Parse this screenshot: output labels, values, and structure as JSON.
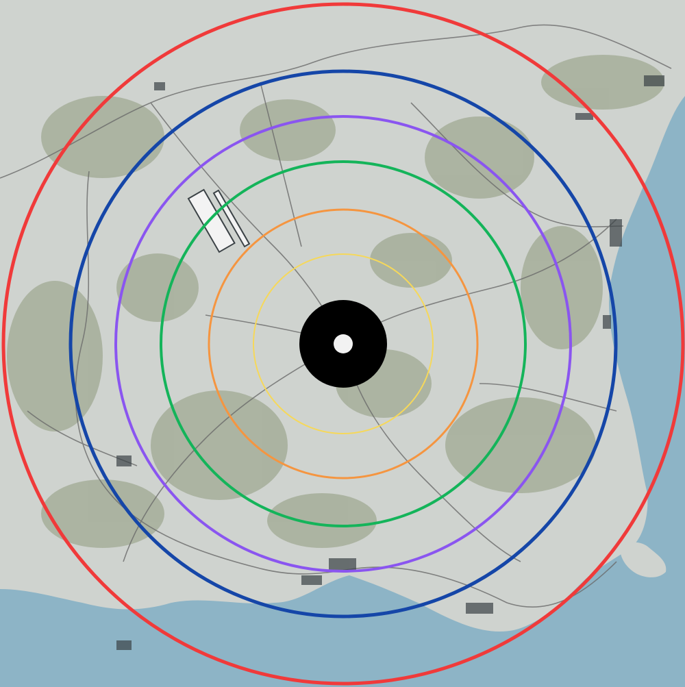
{
  "map": {
    "colors": {
      "sea": "#8db4c6",
      "land": "#cfd3cf",
      "forest": "#8f9a7d",
      "road": "#6b6b6b",
      "town": "#3b4246"
    },
    "rings": [
      {
        "name": "red-ring",
        "color": "#f03a3a"
      },
      {
        "name": "blue-ring",
        "color": "#1546a8"
      },
      {
        "name": "purple-ring",
        "color": "#8a55f0"
      },
      {
        "name": "green-ring",
        "color": "#14b45a"
      },
      {
        "name": "orange-ring",
        "color": "#f59540"
      },
      {
        "name": "yellow-ring",
        "color": "#f6d85a"
      }
    ],
    "center_marker": {
      "outer_color": "#000000",
      "inner_color": "#f2f2f2"
    }
  }
}
